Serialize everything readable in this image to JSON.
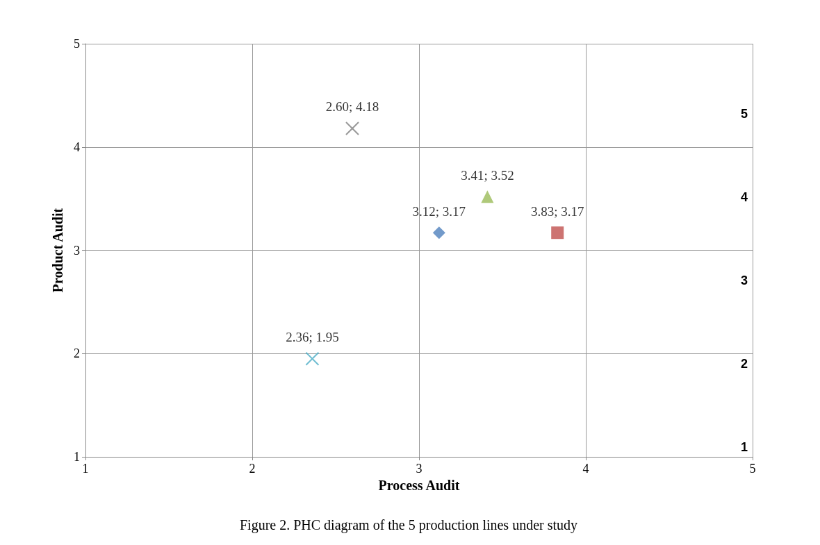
{
  "chart_data": {
    "type": "scatter",
    "title": "Figure 2. PHC diagram of the 5 production lines under study",
    "xlabel": "Process Audit",
    "ylabel": "Product Audit",
    "xlim": [
      1,
      5
    ],
    "xticks": [
      1,
      2,
      3,
      4,
      5
    ],
    "ylim": [
      1,
      5
    ],
    "yticks": [
      1,
      2,
      3,
      4,
      5
    ],
    "grid": true,
    "series": [
      {
        "color": "#808080",
        "marker": "cross",
        "x": [
          2.6
        ],
        "values": [
          4.18
        ],
        "value_labels": [
          "2.60; 4.18"
        ]
      },
      {
        "color": "#9bbb59",
        "marker": "triangle",
        "x": [
          3.41
        ],
        "values": [
          3.52
        ],
        "value_labels": [
          "3.41; 3.52"
        ]
      },
      {
        "color": "#4f81bd",
        "marker": "diamond",
        "x": [
          3.12
        ],
        "values": [
          3.17
        ],
        "value_labels": [
          "3.12; 3.17"
        ]
      },
      {
        "color": "#c0504d",
        "marker": "square",
        "x": [
          3.83
        ],
        "values": [
          3.17
        ],
        "value_labels": [
          "3.83; 3.17"
        ]
      },
      {
        "color": "#4bacc6",
        "marker": "cross",
        "x": [
          2.36
        ],
        "values": [
          1.95
        ],
        "value_labels": [
          "2.36; 1.95"
        ]
      }
    ],
    "annotations": [
      "1",
      "2",
      "3",
      "4",
      "5"
    ]
  }
}
